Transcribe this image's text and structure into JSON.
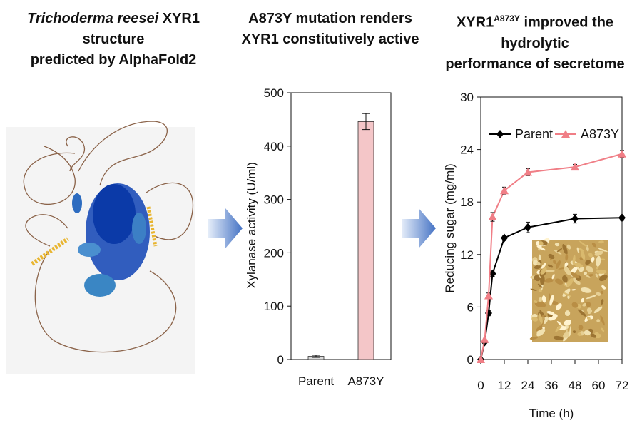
{
  "panels": {
    "left_title": {
      "italic": "Trichoderma reesei",
      "rest": " XYR1 structure",
      "line2": "predicted by AlphaFold2"
    },
    "middle_title": {
      "line1": "A873Y mutation renders",
      "line2": "XYR1 constitutively active"
    },
    "right_title": {
      "pre": "XYR1",
      "sup": "A873Y",
      "post": " improved the hydrolytic",
      "line2": "performance of secretome"
    }
  },
  "chart_data": [
    {
      "type": "bar",
      "categories": [
        "Parent",
        "A873Y"
      ],
      "values": [
        6,
        446
      ],
      "errors": [
        2,
        15
      ],
      "ylabel": "Xylanase activity (U/ml)",
      "ylim": [
        0,
        500
      ],
      "yticks": [
        0,
        100,
        200,
        300,
        400,
        500
      ],
      "colors": {
        "Parent": "#d9d9d9",
        "A873Y": "#f4c6c8"
      }
    },
    {
      "type": "line",
      "xlabel": "Time (h)",
      "ylabel": "Reducing sugar (mg/ml)",
      "xlim": [
        0,
        72
      ],
      "ylim": [
        0,
        30
      ],
      "xticks": [
        0,
        12,
        24,
        36,
        48,
        60,
        72
      ],
      "yticks": [
        0,
        6,
        12,
        18,
        24,
        30
      ],
      "legend_position": "top-left",
      "series": [
        {
          "name": "Parent",
          "marker": "diamond",
          "color": "#000000",
          "x": [
            0,
            2,
            4,
            6,
            12,
            24,
            48,
            72
          ],
          "y": [
            0,
            2,
            5.3,
            9.8,
            13.9,
            15.1,
            16.1,
            16.2
          ],
          "err": [
            0,
            0,
            0.3,
            0.3,
            0.3,
            0.6,
            0.5,
            0.3
          ]
        },
        {
          "name": "A873Y",
          "marker": "triangle",
          "color": "#f07e86",
          "x": [
            0,
            2,
            4,
            6,
            12,
            24,
            48,
            72
          ],
          "y": [
            0,
            2.3,
            7.3,
            16.3,
            19.3,
            21.4,
            22,
            23.5
          ],
          "err": [
            0,
            0,
            0.3,
            0.5,
            0.4,
            0.4,
            0.3,
            0.4
          ]
        }
      ]
    }
  ],
  "images": {
    "protein_structure": "alphafold2-protein-ribbon",
    "substrate_photo": "corncob-biomass-photo"
  },
  "arrows": {
    "color": "#4472c4"
  }
}
